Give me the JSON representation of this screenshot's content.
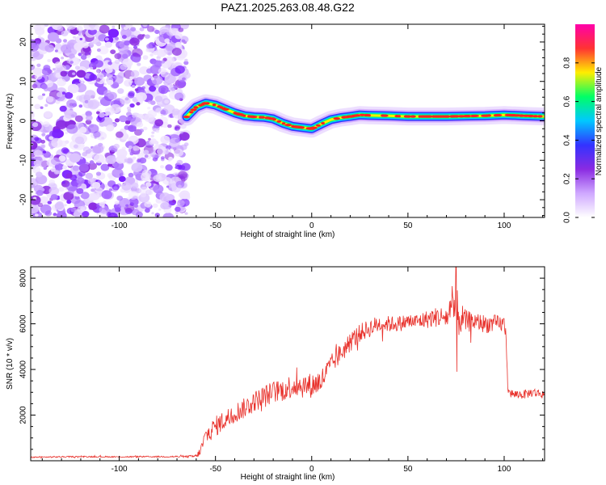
{
  "figure_title": "PAZ1.2025.263.08.48.G22",
  "chart_data": [
    {
      "type": "heatmap",
      "title": "PAZ1.2025.263.08.48.G22",
      "xlabel": "Height of straight line (km)",
      "ylabel": "Frequency (Hz)",
      "xlim": [
        -146,
        121
      ],
      "ylim": [
        -24.5,
        24.5
      ],
      "xticks": [
        -100,
        -50,
        0,
        50,
        100
      ],
      "yticks": [
        20,
        10,
        0,
        -10,
        -20
      ],
      "xtick_labels": [
        "-100",
        "-50",
        "0",
        "50",
        "100"
      ],
      "ytick_labels": [
        "20",
        "10",
        "0",
        "-10",
        "-20"
      ],
      "noise_region_km": [
        -146,
        -65
      ],
      "frequency_trace": {
        "height_km": [
          -65,
          -60,
          -55,
          -50,
          -45,
          -40,
          -35,
          -30,
          -25,
          -20,
          -15,
          -10,
          -5,
          0,
          5,
          10,
          15,
          20,
          25,
          30,
          40,
          50,
          60,
          70,
          80,
          90,
          100,
          110,
          121
        ],
        "frequency_hz": [
          1.0,
          3.5,
          4.5,
          4.0,
          3.0,
          2.0,
          1.3,
          1.0,
          0.9,
          0.5,
          -0.6,
          -1.4,
          -1.7,
          -2.0,
          -0.8,
          0.3,
          0.8,
          1.1,
          1.5,
          1.4,
          1.3,
          1.1,
          1.1,
          1.1,
          1.2,
          1.3,
          1.5,
          1.3,
          1.1
        ]
      },
      "colorbar": {
        "label": "Normalized spectral amplitude",
        "range": [
          0,
          1
        ],
        "ticks": [
          0.0,
          0.2,
          0.4,
          0.6,
          0.8
        ],
        "tick_labels": [
          "0.0",
          "0.2",
          "0.4",
          "0.6",
          "0.8"
        ],
        "colors": [
          "#ffffff",
          "#cfa8ff",
          "#8a2be2",
          "#3333ff",
          "#00c8ff",
          "#00ff66",
          "#ffee00",
          "#ff3333",
          "#ff00aa"
        ]
      }
    },
    {
      "type": "line",
      "xlabel": "Height of straight line (km)",
      "ylabel": "SNR (10 * v/v)",
      "xlim": [
        -146,
        121
      ],
      "ylim": [
        0,
        8500
      ],
      "xticks": [
        -100,
        -50,
        0,
        50,
        100
      ],
      "yticks": [
        2000,
        4000,
        6000,
        8000
      ],
      "xtick_labels": [
        "-100",
        "-50",
        "0",
        "50",
        "100"
      ],
      "ytick_labels": [
        "2000",
        "4000",
        "6000",
        "8000"
      ],
      "series": [
        {
          "name": "SNR",
          "color": "#e8302a",
          "x": [
            -146,
            -140,
            -120,
            -100,
            -80,
            -65,
            -60,
            -58,
            -55,
            -50,
            -45,
            -40,
            -35,
            -30,
            -25,
            -20,
            -15,
            -10,
            -5,
            0,
            5,
            10,
            15,
            20,
            25,
            30,
            35,
            40,
            45,
            50,
            55,
            60,
            65,
            70,
            74,
            75,
            76,
            80,
            85,
            90,
            95,
            100,
            101,
            102,
            105,
            110,
            115,
            121
          ],
          "y": [
            150,
            160,
            180,
            170,
            180,
            180,
            200,
            400,
            1100,
            1500,
            1800,
            2100,
            2300,
            2600,
            2800,
            3000,
            3100,
            3300,
            3300,
            3300,
            3500,
            4200,
            4700,
            5200,
            5600,
            5800,
            6000,
            6000,
            6000,
            6100,
            6100,
            6200,
            6300,
            6300,
            6500,
            7200,
            6300,
            6100,
            6100,
            6000,
            6000,
            6000,
            5500,
            3000,
            2900,
            2900,
            3000,
            2900
          ],
          "noise_amplitude": [
            30,
            30,
            30,
            30,
            30,
            40,
            80,
            200,
            400,
            450,
            450,
            450,
            450,
            450,
            500,
            500,
            500,
            550,
            550,
            550,
            550,
            450,
            450,
            450,
            400,
            400,
            400,
            350,
            350,
            350,
            350,
            400,
            450,
            500,
            1600,
            1200,
            900,
            500,
            400,
            400,
            400,
            350,
            300,
            200,
            200,
            200,
            200,
            200
          ],
          "spikes": [
            {
              "x": 75,
              "y": 8500
            },
            {
              "x": 75.5,
              "y": 3900
            }
          ]
        }
      ]
    }
  ]
}
